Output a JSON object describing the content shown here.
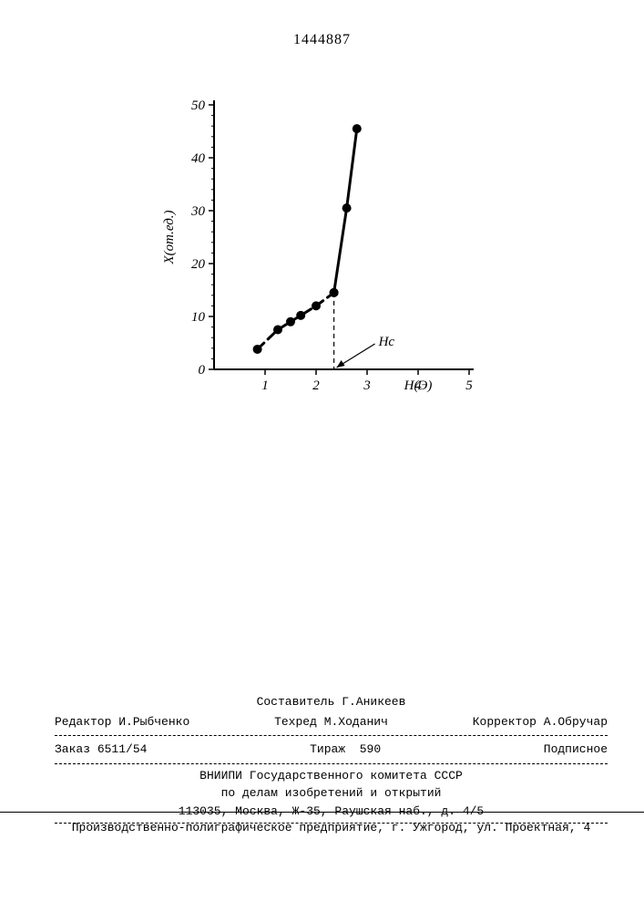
{
  "page_number": "1444887",
  "chart": {
    "type": "line",
    "ylabel": "X(от.ед.)",
    "xlabel": "H(Э)",
    "annotation": "Hc",
    "ylim": [
      0,
      50
    ],
    "xlim": [
      0,
      5
    ],
    "yticks": [
      0,
      10,
      20,
      30,
      40,
      50
    ],
    "yticklabels": [
      "0",
      "10",
      "20",
      "30",
      "40",
      "50"
    ],
    "xticks": [
      1,
      2,
      3,
      4,
      5
    ],
    "xticklabels": [
      "1",
      "2",
      "3",
      "4",
      "5"
    ],
    "y_minor_step": 2,
    "segment1": {
      "points": [
        {
          "x": 0.85,
          "y": 3.8
        },
        {
          "x": 1.25,
          "y": 7.5
        },
        {
          "x": 1.5,
          "y": 9.0
        },
        {
          "x": 1.7,
          "y": 10.2
        },
        {
          "x": 2.0,
          "y": 12.0
        },
        {
          "x": 2.35,
          "y": 14.5
        }
      ],
      "style": "dashed",
      "color": "#000000",
      "line_width": 3,
      "marker_size": 5
    },
    "segment2": {
      "points": [
        {
          "x": 2.35,
          "y": 14.5
        },
        {
          "x": 2.6,
          "y": 30.5
        },
        {
          "x": 2.8,
          "y": 45.5
        }
      ],
      "style": "solid",
      "color": "#000000",
      "line_width": 3,
      "marker_size": 5
    },
    "hc_marker_x": 2.35,
    "axis_color": "#000000",
    "axis_width": 2,
    "label_fontsize": 15,
    "tick_fontsize": 15
  },
  "footer": {
    "compiler_label": "Составитель",
    "compiler_name": "Г.Аникеев",
    "editor_label": "Редактор",
    "editor_name": "И.Рыбченко",
    "techred_label": "Техред",
    "techred_name": "М.Ходанич",
    "corrector_label": "Корректор",
    "corrector_name": "А.Обручар",
    "order_label": "Заказ",
    "order_num": "6511/54",
    "circulation_label": "Тираж",
    "circulation_num": "590",
    "subscription": "Подписное",
    "org_line1": "ВНИИПИ Государственного комитета СССР",
    "org_line2": "по делам изобретений и открытий",
    "org_line3": "113035, Москва, Ж-35, Раушская наб., д. 4/5",
    "bottom": "Производственно-полиграфическое предприятие, г. Ужгород, ул. Проектная, 4"
  }
}
